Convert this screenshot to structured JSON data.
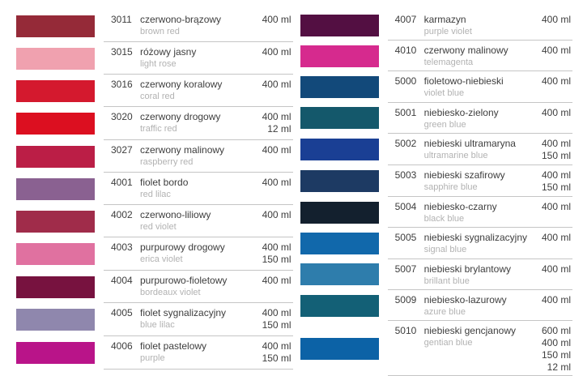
{
  "theme": {
    "background": "#ffffff",
    "text_color": "#3d3d3d",
    "muted_text_color": "#b2b2b2",
    "separator_color": "#c5c5c5"
  },
  "columns": [
    {
      "rows": [
        {
          "code": "3011",
          "name_pl": "czerwono-brązowy",
          "name_en": "brown red",
          "volumes": [
            "400 ml"
          ],
          "color": "#952a38"
        },
        {
          "code": "3015",
          "name_pl": "różowy jasny",
          "name_en": "light rose",
          "volumes": [
            "400 ml"
          ],
          "color": "#f0a1af"
        },
        {
          "code": "3016",
          "name_pl": "czerwony koralowy",
          "name_en": "coral red",
          "volumes": [
            "400 ml"
          ],
          "color": "#d4192e"
        },
        {
          "code": "3020",
          "name_pl": "czerwony drogowy",
          "name_en": "traffic red",
          "volumes": [
            "400 ml",
            "12 ml"
          ],
          "color": "#dc0f20"
        },
        {
          "code": "3027",
          "name_pl": "czerwony malinowy",
          "name_en": "raspberry red",
          "volumes": [
            "400 ml"
          ],
          "color": "#bb1e46"
        },
        {
          "code": "4001",
          "name_pl": "fiolet bordo",
          "name_en": "red lilac",
          "volumes": [
            "400 ml"
          ],
          "color": "#8a6191"
        },
        {
          "code": "4002",
          "name_pl": "czerwono-liliowy",
          "name_en": "red violet",
          "volumes": [
            "400 ml"
          ],
          "color": "#a02c4a"
        },
        {
          "code": "4003",
          "name_pl": "purpurowy drogowy",
          "name_en": "erica violet",
          "volumes": [
            "400 ml",
            "150 ml"
          ],
          "color": "#e071a0"
        },
        {
          "code": "4004",
          "name_pl": "purpurowo-fioletowy",
          "name_en": "bordeaux violet",
          "volumes": [
            "400 ml"
          ],
          "color": "#77123f"
        },
        {
          "code": "4005",
          "name_pl": "fiolet sygnalizacyjny",
          "name_en": "blue lilac",
          "volumes": [
            "400 ml",
            "150 ml"
          ],
          "color": "#8f87ad"
        },
        {
          "code": "4006",
          "name_pl": "fiolet pastelowy",
          "name_en": "purple",
          "volumes": [
            "400 ml",
            "150 ml"
          ],
          "color": "#b91489"
        }
      ]
    },
    {
      "rows": [
        {
          "code": "4007",
          "name_pl": "karmazyn",
          "name_en": "purple violet",
          "volumes": [
            "400 ml"
          ],
          "color": "#530f42"
        },
        {
          "code": "4010",
          "name_pl": "czerwony malinowy",
          "name_en": "telemagenta",
          "volumes": [
            "400 ml"
          ],
          "color": "#d62a8e"
        },
        {
          "code": "5000",
          "name_pl": "fioletowo-niebieski",
          "name_en": "violet blue",
          "volumes": [
            "400 ml"
          ],
          "color": "#12497a"
        },
        {
          "code": "5001",
          "name_pl": "niebiesko-zielony",
          "name_en": "green blue",
          "volumes": [
            "400 ml"
          ],
          "color": "#14586b"
        },
        {
          "code": "5002",
          "name_pl": "niebieski ultramaryna",
          "name_en": "ultramarine blue",
          "volumes": [
            "400 ml",
            "150 ml"
          ],
          "color": "#1a3f94"
        },
        {
          "code": "5003",
          "name_pl": "niebieski szafirowy",
          "name_en": "sapphire blue",
          "volumes": [
            "400 ml",
            "150 ml"
          ],
          "color": "#1d3a63"
        },
        {
          "code": "5004",
          "name_pl": "niebiesko-czarny",
          "name_en": "black blue",
          "volumes": [
            "400 ml"
          ],
          "color": "#13202e"
        },
        {
          "code": "5005",
          "name_pl": "niebieski sygnalizacyjny",
          "name_en": "signal blue",
          "volumes": [
            "400 ml"
          ],
          "color": "#1168ab"
        },
        {
          "code": "5007",
          "name_pl": "niebieski brylantowy",
          "name_en": "brillant blue",
          "volumes": [
            "400 ml"
          ],
          "color": "#2e7dac"
        },
        {
          "code": "5009",
          "name_pl": "niebiesko-lazurowy",
          "name_en": "azure blue",
          "volumes": [
            "400 ml"
          ],
          "color": "#136076"
        },
        {
          "code": "5010",
          "name_pl": "niebieski gencjanowy",
          "name_en": "gentian blue",
          "volumes": [
            "600 ml",
            "400 ml",
            "150 ml",
            "12 ml"
          ],
          "color": "#0c62a6"
        }
      ]
    }
  ]
}
